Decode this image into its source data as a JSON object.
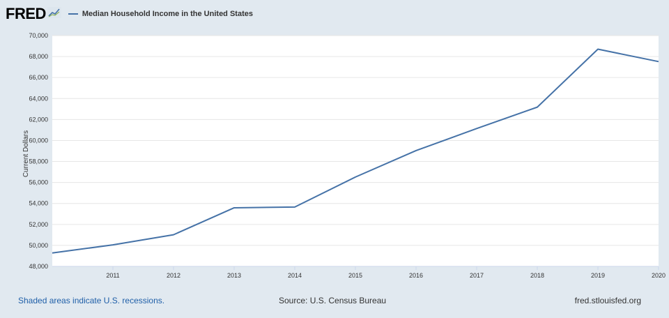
{
  "header": {
    "logo_text": "FRED",
    "logo_icon": "line-chart-icon",
    "series_label": "Median Household Income in the United States"
  },
  "colors": {
    "background": "#e1e9f0",
    "plot_background": "#ffffff",
    "series": "#4572a7",
    "gridline": "#e6e6e6",
    "footer_link": "#1f5fa8"
  },
  "footer": {
    "recessions_note": "Shaded areas indicate U.S. recessions.",
    "source": "Source: U.S. Census Bureau",
    "site": "fred.stlouisfed.org"
  },
  "chart_data": {
    "type": "line",
    "title": "",
    "xlabel": "",
    "ylabel": "Current Dollars",
    "x": [
      2010,
      2011,
      2012,
      2013,
      2014,
      2015,
      2016,
      2017,
      2018,
      2019,
      2020
    ],
    "x_ticks": [
      "2011",
      "2012",
      "2013",
      "2014",
      "2015",
      "2016",
      "2017",
      "2018",
      "2019",
      "2020"
    ],
    "y_ticks": [
      "48,000",
      "50,000",
      "52,000",
      "54,000",
      "56,000",
      "58,000",
      "60,000",
      "62,000",
      "64,000",
      "66,000",
      "68,000",
      "70,000"
    ],
    "ylim": [
      48000,
      70000
    ],
    "xlim": [
      2010,
      2020
    ],
    "grid": true,
    "legend": "top-left",
    "series": [
      {
        "name": "Median Household Income in the United States",
        "values": [
          49276,
          50054,
          51017,
          53585,
          53657,
          56516,
          59039,
          61136,
          63179,
          68703,
          67521
        ]
      }
    ]
  }
}
